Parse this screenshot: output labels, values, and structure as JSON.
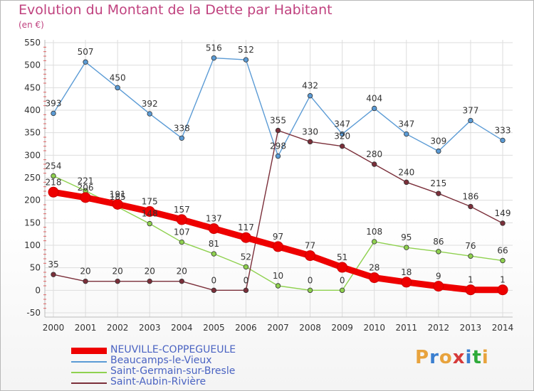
{
  "title": "Evolution du Montant de la Dette par Habitant",
  "unit_label": "(en €)",
  "logo_text": "Proxiti",
  "chart_data": {
    "type": "line",
    "x": [
      "2000",
      "2001",
      "2002",
      "2003",
      "2004",
      "2005",
      "2006",
      "2007",
      "2008",
      "2009",
      "2010",
      "2011",
      "2012",
      "2013",
      "2014"
    ],
    "ylim": [
      -50,
      550
    ],
    "yticks": [
      -50,
      0,
      50,
      100,
      150,
      200,
      250,
      300,
      350,
      400,
      450,
      500,
      550
    ],
    "grid": true,
    "legend_position": "bottom-left",
    "series": [
      {
        "name": "NEUVILLE-COPPEGUEULE",
        "color": "#ee0000",
        "values": [
          218,
          206,
          191,
          175,
          157,
          137,
          117,
          97,
          77,
          51,
          28,
          18,
          9,
          1,
          1
        ]
      },
      {
        "name": "Beaucamps-le-Vieux",
        "color": "#5b9bd5",
        "values": [
          393,
          507,
          450,
          392,
          338,
          516,
          512,
          298,
          432,
          347,
          404,
          347,
          309,
          377,
          333
        ]
      },
      {
        "name": "Saint-Germain-sur-Bresle",
        "color": "#8fd14f",
        "values": [
          254,
          221,
          185,
          148,
          107,
          81,
          52,
          10,
          0,
          0,
          108,
          95,
          86,
          76,
          66
        ]
      },
      {
        "name": "Saint-Aubin-Rivière",
        "color": "#7b2f3a",
        "values": [
          35,
          20,
          20,
          20,
          20,
          0,
          0,
          355,
          330,
          320,
          280,
          240,
          215,
          186,
          149
        ]
      }
    ]
  }
}
